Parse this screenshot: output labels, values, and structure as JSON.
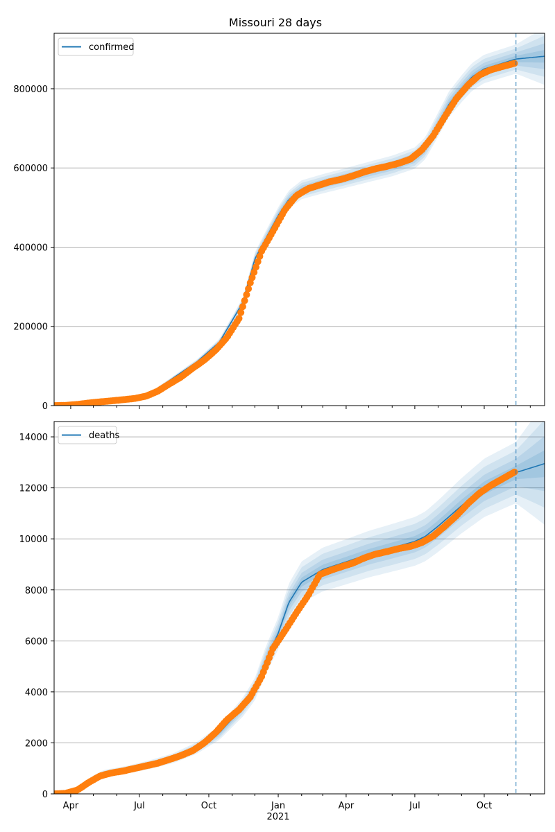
{
  "title": "Missouri 28 days",
  "colors": {
    "model": "#1f77b4",
    "observed": "#ff7f0e",
    "grid": "#b0b0b0"
  },
  "chart_data": [
    {
      "type": "line",
      "panel": "top",
      "legend": [
        "confirmed"
      ],
      "legend_placement": "upper-left",
      "grid": "y",
      "x_range": [
        "2020-03-10",
        "2021-12-20"
      ],
      "ylim": [
        0,
        940000
      ],
      "y_ticks": [
        0,
        200000,
        400000,
        600000,
        800000
      ],
      "forecast_start": "2021-11-12",
      "model_curve": [
        [
          "2020-03-10",
          0
        ],
        [
          "2020-04-15",
          4000
        ],
        [
          "2020-05-15",
          10000
        ],
        [
          "2020-06-15",
          16000
        ],
        [
          "2020-07-15",
          30000
        ],
        [
          "2020-08-15",
          70000
        ],
        [
          "2020-09-15",
          110000
        ],
        [
          "2020-10-15",
          160000
        ],
        [
          "2020-11-15",
          260000
        ],
        [
          "2020-12-01",
          370000
        ],
        [
          "2020-12-15",
          420000
        ],
        [
          "2021-01-01",
          480000
        ],
        [
          "2021-01-15",
          520000
        ],
        [
          "2021-02-01",
          545000
        ],
        [
          "2021-03-01",
          560000
        ],
        [
          "2021-04-01",
          575000
        ],
        [
          "2021-05-01",
          590000
        ],
        [
          "2021-06-01",
          605000
        ],
        [
          "2021-07-01",
          625000
        ],
        [
          "2021-07-15",
          650000
        ],
        [
          "2021-08-01",
          710000
        ],
        [
          "2021-08-15",
          760000
        ],
        [
          "2021-09-01",
          800000
        ],
        [
          "2021-09-15",
          830000
        ],
        [
          "2021-10-01",
          850000
        ],
        [
          "2021-11-12",
          875000
        ],
        [
          "2021-12-20",
          882000
        ]
      ],
      "uncertainty_spread": 0.04,
      "observed": [
        [
          "2020-03-10",
          0
        ],
        [
          "2020-03-25",
          500
        ],
        [
          "2020-04-10",
          3000
        ],
        [
          "2020-04-25",
          6500
        ],
        [
          "2020-05-10",
          9500
        ],
        [
          "2020-05-25",
          12000
        ],
        [
          "2020-06-10",
          15000
        ],
        [
          "2020-06-25",
          18000
        ],
        [
          "2020-07-10",
          24000
        ],
        [
          "2020-07-25",
          36000
        ],
        [
          "2020-08-10",
          55000
        ],
        [
          "2020-08-25",
          72000
        ],
        [
          "2020-09-10",
          95000
        ],
        [
          "2020-09-25",
          115000
        ],
        [
          "2020-10-10",
          140000
        ],
        [
          "2020-10-25",
          172000
        ],
        [
          "2020-11-10",
          220000
        ],
        [
          "2020-11-25",
          310000
        ],
        [
          "2020-12-10",
          390000
        ],
        [
          "2020-12-25",
          440000
        ],
        [
          "2021-01-10",
          495000
        ],
        [
          "2021-01-25",
          530000
        ],
        [
          "2021-02-10",
          548000
        ],
        [
          "2021-02-25",
          557000
        ],
        [
          "2021-03-10",
          565000
        ],
        [
          "2021-03-25",
          571000
        ],
        [
          "2021-04-10",
          580000
        ],
        [
          "2021-04-25",
          590000
        ],
        [
          "2021-05-10",
          598000
        ],
        [
          "2021-05-25",
          604000
        ],
        [
          "2021-06-10",
          612000
        ],
        [
          "2021-06-25",
          622000
        ],
        [
          "2021-07-10",
          645000
        ],
        [
          "2021-07-25",
          680000
        ],
        [
          "2021-08-10",
          730000
        ],
        [
          "2021-08-25",
          775000
        ],
        [
          "2021-09-10",
          810000
        ],
        [
          "2021-09-25",
          835000
        ],
        [
          "2021-10-10",
          848000
        ],
        [
          "2021-10-25",
          856000
        ],
        [
          "2021-11-12",
          865000
        ]
      ]
    },
    {
      "type": "line",
      "panel": "bottom",
      "legend": [
        "deaths"
      ],
      "legend_placement": "upper-left",
      "grid": "y",
      "x_range": [
        "2020-03-10",
        "2021-12-20"
      ],
      "ylim": [
        0,
        14600
      ],
      "y_ticks": [
        0,
        2000,
        4000,
        6000,
        8000,
        10000,
        12000,
        14000
      ],
      "forecast_start": "2021-11-12",
      "x_tick_labels": [
        "Apr",
        "Jul",
        "Oct",
        "Jan",
        "Apr",
        "Jul",
        "Oct"
      ],
      "x_tick_dates": [
        "2020-04-01",
        "2020-07-01",
        "2020-10-01",
        "2021-01-01",
        "2021-04-01",
        "2021-07-01",
        "2021-10-01"
      ],
      "year_label": "2021",
      "model_curve": [
        [
          "2020-03-10",
          0
        ],
        [
          "2020-04-01",
          50
        ],
        [
          "2020-04-15",
          300
        ],
        [
          "2020-05-01",
          600
        ],
        [
          "2020-05-15",
          800
        ],
        [
          "2020-06-15",
          950
        ],
        [
          "2020-07-15",
          1150
        ],
        [
          "2020-08-15",
          1400
        ],
        [
          "2020-09-15",
          1800
        ],
        [
          "2020-10-15",
          2400
        ],
        [
          "2020-11-15",
          3400
        ],
        [
          "2020-12-01",
          4100
        ],
        [
          "2020-12-15",
          5200
        ],
        [
          "2021-01-01",
          6300
        ],
        [
          "2021-01-15",
          7500
        ],
        [
          "2021-02-01",
          8300
        ],
        [
          "2021-03-01",
          8800
        ],
        [
          "2021-04-01",
          9100
        ],
        [
          "2021-05-01",
          9400
        ],
        [
          "2021-06-01",
          9650
        ],
        [
          "2021-07-01",
          9900
        ],
        [
          "2021-07-15",
          10100
        ],
        [
          "2021-08-01",
          10500
        ],
        [
          "2021-09-01",
          11300
        ],
        [
          "2021-10-01",
          12000
        ],
        [
          "2021-11-12",
          12600
        ],
        [
          "2021-12-20",
          12950
        ]
      ],
      "uncertainty_spread": 0.09,
      "observed": [
        [
          "2020-03-10",
          0
        ],
        [
          "2020-03-25",
          20
        ],
        [
          "2020-04-10",
          150
        ],
        [
          "2020-04-25",
          450
        ],
        [
          "2020-05-10",
          700
        ],
        [
          "2020-05-25",
          820
        ],
        [
          "2020-06-10",
          900
        ],
        [
          "2020-06-25",
          1000
        ],
        [
          "2020-07-10",
          1100
        ],
        [
          "2020-07-25",
          1200
        ],
        [
          "2020-08-10",
          1350
        ],
        [
          "2020-08-25",
          1500
        ],
        [
          "2020-09-10",
          1700
        ],
        [
          "2020-09-25",
          2000
        ],
        [
          "2020-10-10",
          2400
        ],
        [
          "2020-10-25",
          2900
        ],
        [
          "2020-11-10",
          3300
        ],
        [
          "2020-11-25",
          3800
        ],
        [
          "2020-12-10",
          4600
        ],
        [
          "2020-12-25",
          5700
        ],
        [
          "2021-01-10",
          6400
        ],
        [
          "2021-01-25",
          7100
        ],
        [
          "2021-02-10",
          7800
        ],
        [
          "2021-02-25",
          8600
        ],
        [
          "2021-03-10",
          8750
        ],
        [
          "2021-03-25",
          8900
        ],
        [
          "2021-04-10",
          9050
        ],
        [
          "2021-04-25",
          9250
        ],
        [
          "2021-05-10",
          9400
        ],
        [
          "2021-05-25",
          9500
        ],
        [
          "2021-06-10",
          9620
        ],
        [
          "2021-06-25",
          9700
        ],
        [
          "2021-07-10",
          9850
        ],
        [
          "2021-07-25",
          10100
        ],
        [
          "2021-08-10",
          10500
        ],
        [
          "2021-08-25",
          10900
        ],
        [
          "2021-09-10",
          11400
        ],
        [
          "2021-09-25",
          11800
        ],
        [
          "2021-10-10",
          12100
        ],
        [
          "2021-10-25",
          12350
        ],
        [
          "2021-11-12",
          12650
        ]
      ]
    }
  ]
}
